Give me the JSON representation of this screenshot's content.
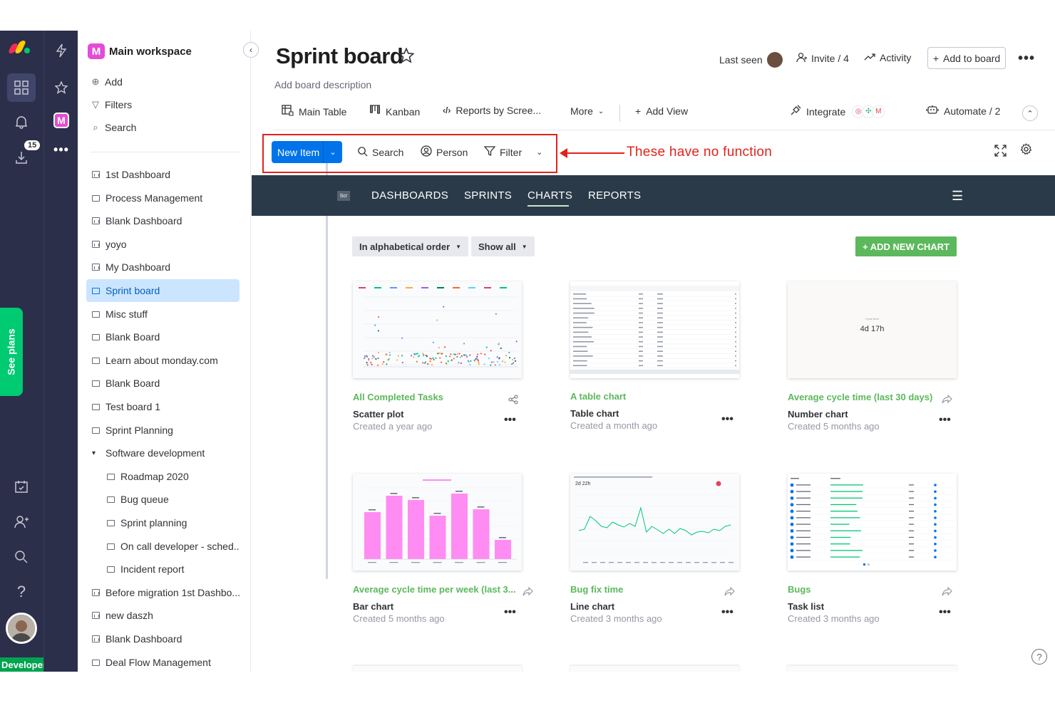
{
  "rail": {
    "notifications_badge": "15",
    "see_plans": "See plans",
    "user_label": "Developer",
    "logo_colors": [
      "#f62b54",
      "#ffcc00",
      "#00ca72"
    ]
  },
  "workspace": {
    "icon_letter": "M",
    "title": "Main workspace",
    "actions": [
      {
        "label": "Add",
        "icon": "plus-circle-icon"
      },
      {
        "label": "Filters",
        "icon": "filter-icon"
      },
      {
        "label": "Search",
        "icon": "search-icon"
      }
    ],
    "boards": [
      {
        "label": "1st Dashboard",
        "type": "dashboard",
        "level": 0
      },
      {
        "label": "Process Management",
        "type": "board",
        "level": 0
      },
      {
        "label": "Blank Dashboard",
        "type": "dashboard",
        "level": 0
      },
      {
        "label": "yoyo",
        "type": "dashboard",
        "level": 0
      },
      {
        "label": "My Dashboard",
        "type": "dashboard",
        "level": 0
      },
      {
        "label": "Sprint board",
        "type": "board",
        "level": 0,
        "selected": true
      },
      {
        "label": "Misc stuff",
        "type": "board",
        "level": 0
      },
      {
        "label": "Blank Board",
        "type": "board",
        "level": 0
      },
      {
        "label": "Learn about monday.com",
        "type": "board",
        "level": 0
      },
      {
        "label": "Blank Board",
        "type": "board",
        "level": 0
      },
      {
        "label": "Test board 1",
        "type": "board",
        "level": 0
      },
      {
        "label": "Sprint Planning",
        "type": "board",
        "level": 0
      },
      {
        "label": "Software development",
        "type": "folder",
        "level": 0
      },
      {
        "label": "Roadmap 2020",
        "type": "board",
        "level": 1
      },
      {
        "label": "Bug queue",
        "type": "board",
        "level": 1
      },
      {
        "label": "Sprint planning",
        "type": "board",
        "level": 1
      },
      {
        "label": "On call developer - sched...",
        "type": "board",
        "level": 1
      },
      {
        "label": "Incident report",
        "type": "board",
        "level": 1
      },
      {
        "label": "Before migration 1st Dashbo...",
        "type": "dashboard",
        "level": 0
      },
      {
        "label": "new daszh",
        "type": "dashboard",
        "level": 0
      },
      {
        "label": "Blank Dashboard",
        "type": "dashboard",
        "level": 0
      },
      {
        "label": "Deal Flow Management",
        "type": "board",
        "level": 0
      }
    ]
  },
  "header": {
    "title": "Sprint board",
    "description": "Add board description",
    "last_seen": "Last seen",
    "invite": "Invite / 4",
    "activity": "Activity",
    "add_to_board": "Add to board"
  },
  "tabs": [
    {
      "label": "Main Table",
      "icon": "table-icon"
    },
    {
      "label": "Kanban",
      "icon": "kanban-icon"
    },
    {
      "label": "Reports by Scree...",
      "icon": "code-icon"
    }
  ],
  "tabs_extra": {
    "more": "More",
    "add_view": "Add View",
    "integrate": "Integrate",
    "automate": "Automate / 2"
  },
  "toolbar": {
    "new_item": "New Item",
    "search": "Search",
    "person": "Person",
    "filter": "Filter",
    "annotation": "These have no function",
    "annotation_color": "#e2231a"
  },
  "app_nav": {
    "logo_text": "Scr",
    "items": [
      "DASHBOARDS",
      "SPRINTS",
      "CHARTS",
      "REPORTS"
    ],
    "active": "CHARTS"
  },
  "controls": {
    "sort": "In alphabetical order",
    "show": "Show all",
    "add_chart": "+ ADD NEW CHART"
  },
  "charts": [
    {
      "title": "All Completed Tasks",
      "type": "Scatter plot",
      "created": "Created a year ago"
    },
    {
      "title": "A table chart",
      "type": "Table chart",
      "created": "Created a month ago"
    },
    {
      "title": "Average cycle time (last 30 days)",
      "type": "Number chart",
      "created": "Created 5 months ago",
      "thumb_value": "4d 17h"
    },
    {
      "title": "Average cycle time per week (last 3...",
      "type": "Bar chart",
      "created": "Created 5 months ago"
    },
    {
      "title": "Bug fix time",
      "type": "Line chart",
      "created": "Created 3 months ago",
      "thumb_value": "2d 22h"
    },
    {
      "title": "Bugs",
      "type": "Task list",
      "created": "Created 3 months ago"
    }
  ],
  "colors": {
    "primary": "#0073ea",
    "green": "#5cb85c",
    "dark_nav": "#2a3a48",
    "rail": "#2b2f4a",
    "bar_pink": "#ff8cf3"
  }
}
